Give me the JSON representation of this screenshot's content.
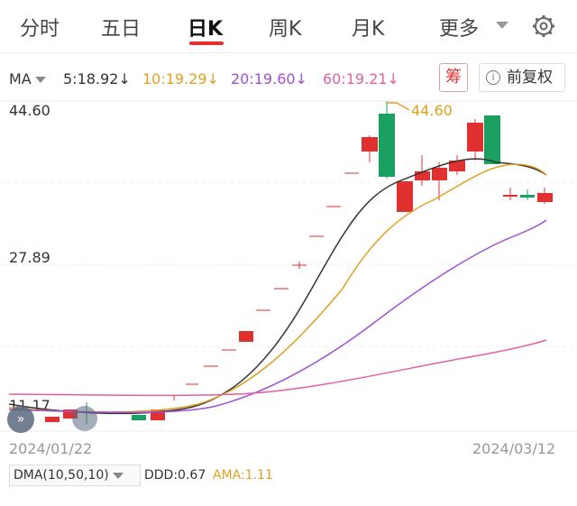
{
  "tabs": [
    {
      "label": "分时"
    },
    {
      "label": "五日"
    },
    {
      "label": "日K",
      "active": true
    },
    {
      "label": "周K"
    },
    {
      "label": "月K"
    },
    {
      "label": "更多"
    }
  ],
  "ma_bar": {
    "label": "MA",
    "items": [
      {
        "text": "5:18.92↓",
        "color": "#333333"
      },
      {
        "text": "10:19.29↓",
        "color": "#e0a020"
      },
      {
        "text": "20:19.60↓",
        "color": "#a050d0"
      },
      {
        "text": "60:19.21↓",
        "color": "#e060a0"
      }
    ],
    "chou_label": "筹",
    "fuquan_label": "前复权",
    "info_glyph": "i"
  },
  "axis": {
    "y_top": "44.60",
    "y_mid": "27.89",
    "y_low": "11.17",
    "x_start": "2024/01/22",
    "x_end": "2024/03/12"
  },
  "high_marker": "44.60",
  "bubble_glyph": "»",
  "indicator": {
    "dma_label": "DMA(10,50,10)",
    "ddd": "DDD:0.67",
    "ama": "AMA:1.11"
  },
  "colors": {
    "up": "#e03030",
    "down": "#1aa060",
    "ma5": "#333333",
    "ma10": "#e0a020",
    "ma20": "#a050d0",
    "ma60": "#e060a0"
  }
}
